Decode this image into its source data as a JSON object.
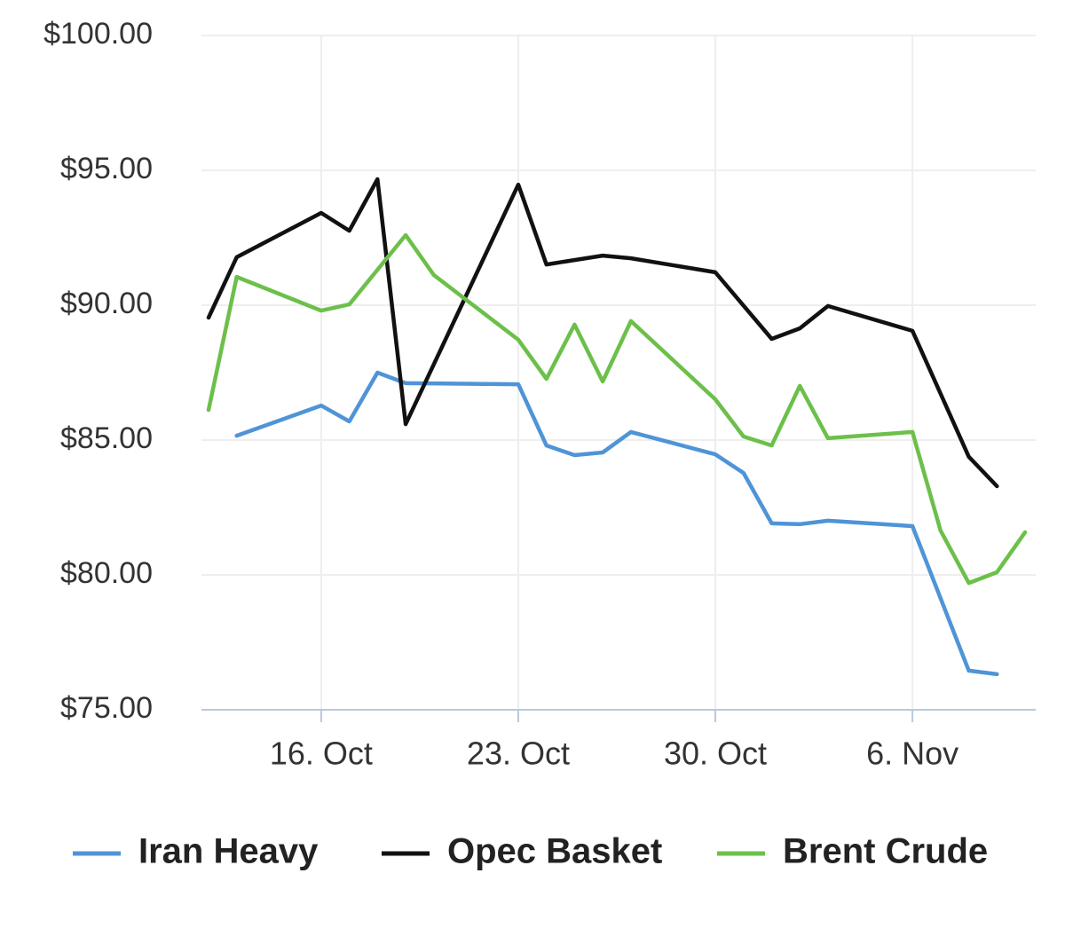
{
  "chart_data": {
    "type": "line",
    "ylim": [
      75,
      100
    ],
    "yticks": [
      {
        "value": 75,
        "label": "$75.00"
      },
      {
        "value": 80,
        "label": "$80.00"
      },
      {
        "value": 85,
        "label": "$85.00"
      },
      {
        "value": 90,
        "label": "$90.00"
      },
      {
        "value": 95,
        "label": "$95.00"
      },
      {
        "value": 100,
        "label": "$100.00"
      }
    ],
    "xticks": [
      "16. Oct",
      "23. Oct",
      "30. Oct",
      "6. Nov"
    ],
    "grid": true,
    "legend": "bottom",
    "series": [
      {
        "name": "Iran Heavy",
        "color": "#4f94d6",
        "x": [
          "13. Oct",
          "16. Oct",
          "17. Oct",
          "18. Oct",
          "19. Oct",
          "23. Oct",
          "24. Oct",
          "25. Oct",
          "26. Oct",
          "27. Oct",
          "30. Oct",
          "31. Oct",
          "1. Nov",
          "2. Nov",
          "3. Nov",
          "6. Nov",
          "8. Nov",
          "9. Nov"
        ],
        "values": [
          85.16,
          86.28,
          85.69,
          87.5,
          87.11,
          87.07,
          84.8,
          84.44,
          84.54,
          85.3,
          84.47,
          83.78,
          81.91,
          81.88,
          82.01,
          81.81,
          76.45,
          76.32
        ]
      },
      {
        "name": "Opec Basket",
        "color": "#111111",
        "x": [
          "12. Oct",
          "13. Oct",
          "16. Oct",
          "17. Oct",
          "18. Oct",
          "19. Oct",
          "23. Oct",
          "24. Oct",
          "26. Oct",
          "27. Oct",
          "30. Oct",
          "1. Nov",
          "2. Nov",
          "3. Nov",
          "6. Nov",
          "8. Nov",
          "9. Nov"
        ],
        "values": [
          89.54,
          91.78,
          93.42,
          92.76,
          94.67,
          85.59,
          94.47,
          91.51,
          91.84,
          91.74,
          91.22,
          88.75,
          89.14,
          89.97,
          89.05,
          84.38,
          83.29
        ]
      },
      {
        "name": "Brent Crude",
        "color": "#6cc04a",
        "x": [
          "12. Oct",
          "13. Oct",
          "16. Oct",
          "17. Oct",
          "19. Oct",
          "20. Oct",
          "23. Oct",
          "24. Oct",
          "25. Oct",
          "26. Oct",
          "27. Oct",
          "30. Oct",
          "31. Oct",
          "1. Nov",
          "2. Nov",
          "3. Nov",
          "6. Nov",
          "7. Nov",
          "8. Nov",
          "9. Nov",
          "10. Nov"
        ],
        "values": [
          86.12,
          91.05,
          89.8,
          90.03,
          92.6,
          91.12,
          88.72,
          87.27,
          89.28,
          87.17,
          89.41,
          86.51,
          85.13,
          84.8,
          87.01,
          85.07,
          85.3,
          81.64,
          79.7,
          80.1,
          81.58
        ]
      }
    ]
  }
}
